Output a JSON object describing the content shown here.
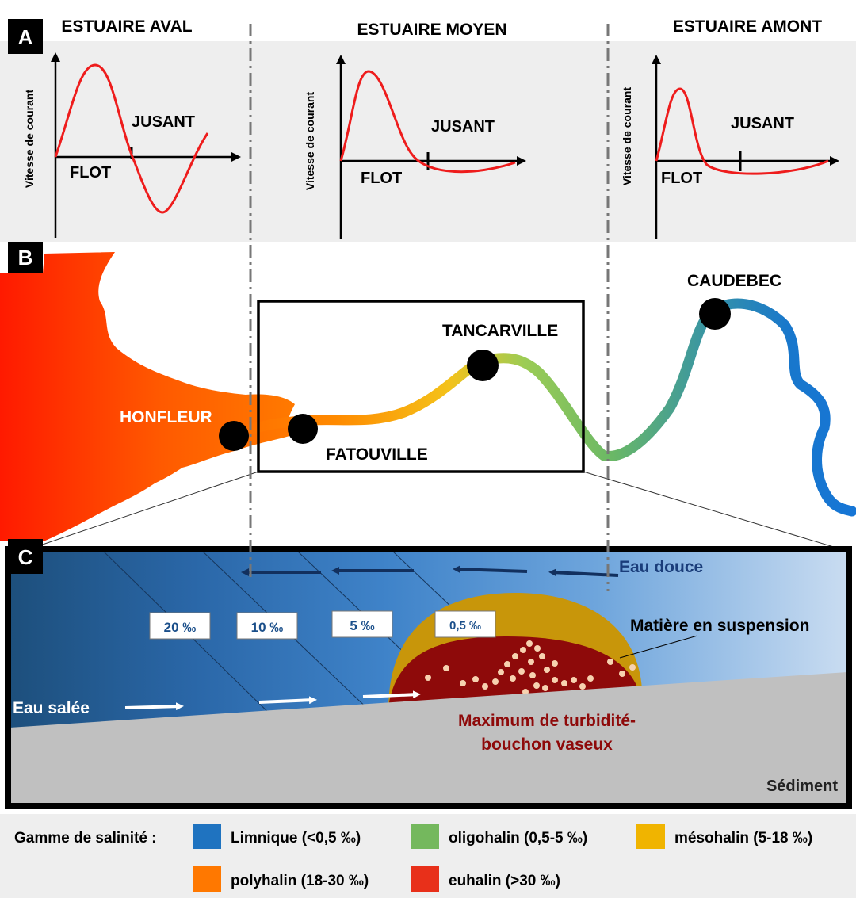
{
  "panel_a": {
    "badge": "A",
    "sections": [
      {
        "title": "ESTUAIRE AVAL",
        "ylabel": "Vitesse de courant",
        "flot": "FLOT",
        "jusant": "JUSANT"
      },
      {
        "title": "ESTUAIRE MOYEN",
        "ylabel": "Vitesse de courant",
        "flot": "FLOT",
        "jusant": "JUSANT"
      },
      {
        "title": "ESTUAIRE AMONT",
        "ylabel": "Vitesse de courant",
        "flot": "FLOT",
        "jusant": "JUSANT"
      }
    ]
  },
  "panel_b": {
    "badge": "B",
    "places": {
      "honfleur": "HONFLEUR",
      "fatouville": "FATOUVILLE",
      "tancarville": "TANCARVILLE",
      "caudebec": "CAUDEBEC"
    }
  },
  "panel_c": {
    "badge": "C",
    "eau_douce": "Eau douce",
    "eau_salee": "Eau salée",
    "salinity_labels": [
      "20 ‰",
      "10 ‰",
      "5 ‰",
      "0,5 ‰"
    ],
    "suspension": "Matière en suspension",
    "turbidity_line1": "Maximum de turbidité-",
    "turbidity_line2": "bouchon vaseux",
    "sediment": "Sédiment"
  },
  "legend": {
    "title": "Gamme de salinité :",
    "items": [
      {
        "label": "Limnique  (<0,5 ‰)",
        "color": "#1f73c0"
      },
      {
        "label": "oligohalin  (0,5-5 ‰)",
        "color": "#74b85d"
      },
      {
        "label": "mésohalin  (5-18 ‰)",
        "color": "#f0b400"
      },
      {
        "label": "polyhalin  (18-30 ‰)",
        "color": "#ff7800"
      },
      {
        "label": "euhalin  (>30 ‰)",
        "color": "#e8301a"
      }
    ]
  }
}
